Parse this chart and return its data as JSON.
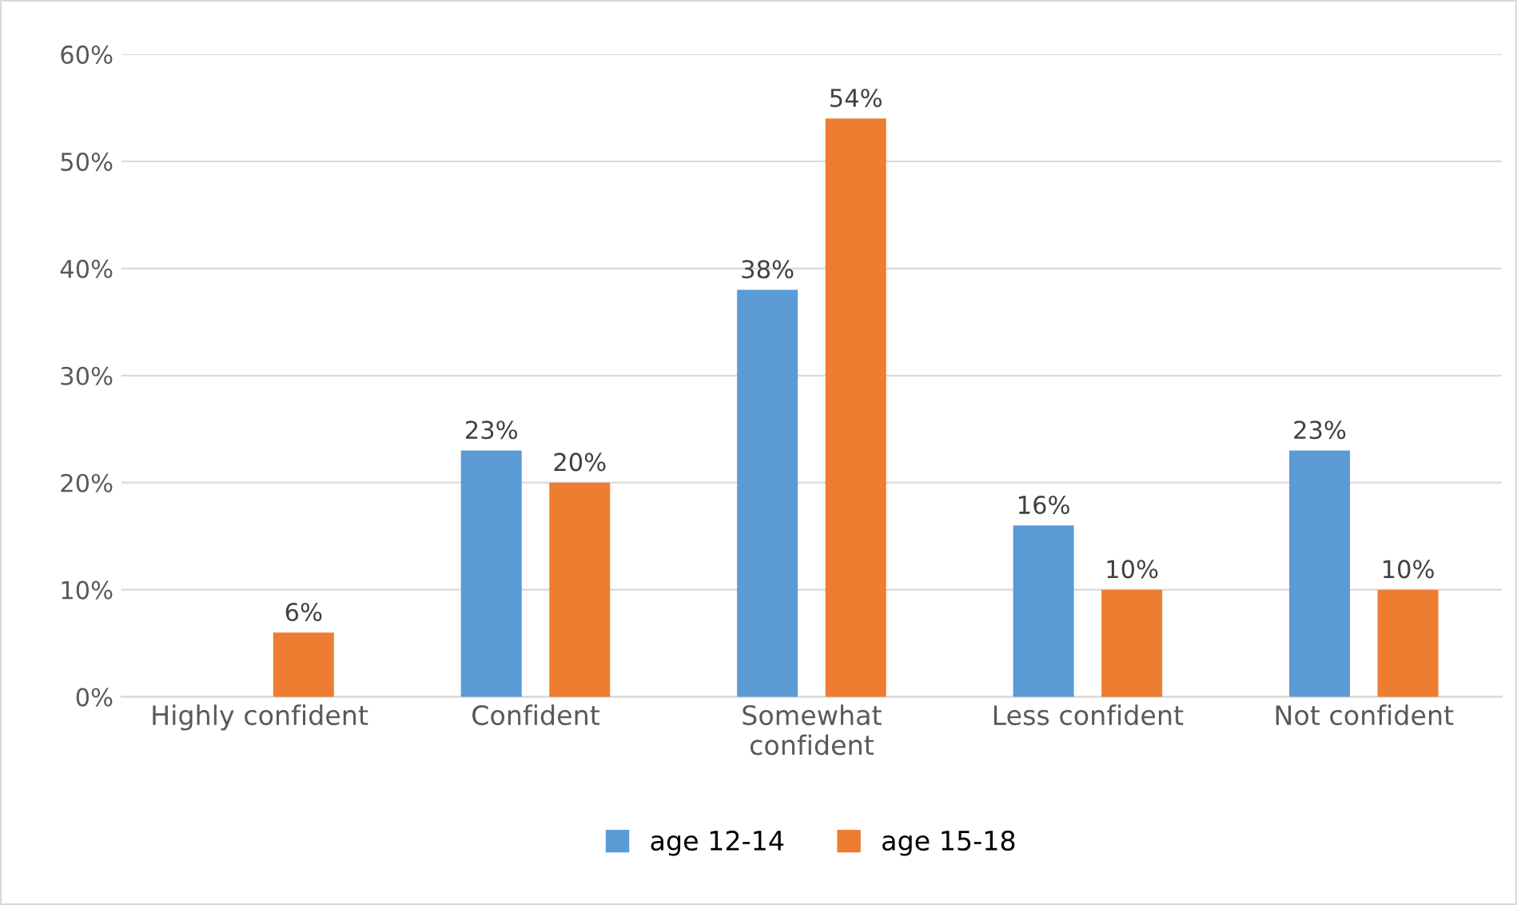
{
  "chart_data": {
    "type": "bar",
    "categories": [
      "Highly confident",
      "Confident",
      "Somewhat\nconfident",
      "Less confident",
      "Not confident"
    ],
    "series": [
      {
        "name": "age 12-14",
        "color": "#5b9bd5",
        "values": [
          null,
          23,
          38,
          16,
          23
        ],
        "value_labels": [
          null,
          "23%",
          "38%",
          "16%",
          "23%"
        ]
      },
      {
        "name": "age 15-18",
        "color": "#ed7d31",
        "values": [
          6,
          20,
          54,
          10,
          10
        ],
        "value_labels": [
          "6%",
          "20%",
          "54%",
          "10%",
          "10%"
        ]
      }
    ],
    "ylim": [
      0,
      60
    ],
    "yticks": [
      {
        "value": 0,
        "label": "0%"
      },
      {
        "value": 10,
        "label": "10%"
      },
      {
        "value": 20,
        "label": "20%"
      },
      {
        "value": 30,
        "label": "30%"
      },
      {
        "value": 40,
        "label": "40%"
      },
      {
        "value": 50,
        "label": "50%"
      },
      {
        "value": 60,
        "label": "60%"
      }
    ],
    "grid": "y",
    "legend": "bottom"
  }
}
